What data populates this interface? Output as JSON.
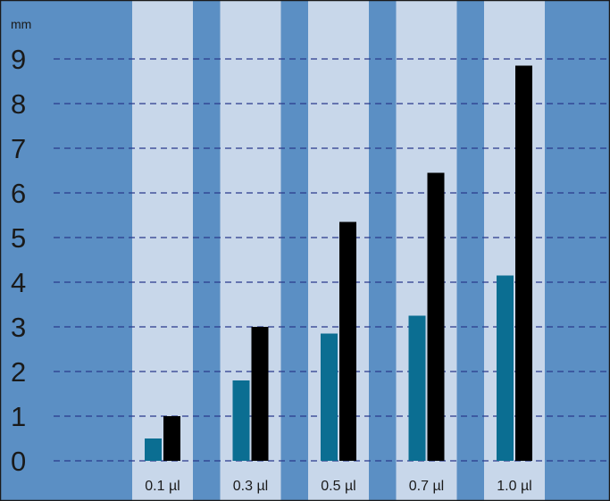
{
  "chart_data": {
    "type": "bar",
    "unit_label": "mm",
    "categories": [
      "0.1 µl",
      "0.3 µl",
      "0.5 µl",
      "0.7 µl",
      "1.0 µl"
    ],
    "series": [
      {
        "values": [
          0.5,
          1.8,
          2.85,
          3.25,
          4.15
        ]
      },
      {
        "values": [
          1.0,
          3.0,
          5.35,
          6.45,
          8.85
        ]
      }
    ],
    "yticks": [
      "0",
      "1",
      "2",
      "3",
      "4",
      "5",
      "6",
      "7",
      "8",
      "9"
    ],
    "ylim": [
      0,
      9.7
    ],
    "grid": true,
    "legend": "none"
  },
  "colors": {
    "background": "#5b8fc4",
    "category_band": "#c8d7ea",
    "series_1": "#0b6e92",
    "series_2": "#000000",
    "gridline": "#2a3a8c",
    "border": "#1a1a1a"
  }
}
